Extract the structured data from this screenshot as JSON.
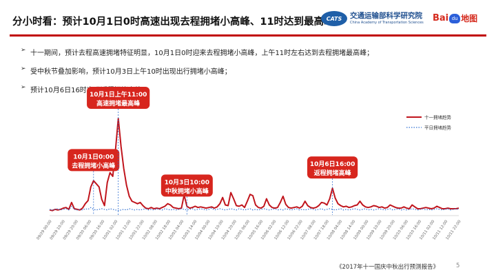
{
  "header": {
    "title": "分小时看：预计10月1日0时高速出现去程拥堵小高峰、11时达到最高峰",
    "org_badge": "CATS",
    "org_name_cn": "交通运输部科学研究院",
    "org_name_en": "China Academy of Transportation Sciences",
    "baidu_bai": "Bai",
    "baidu_du": "du",
    "baidu_map": "地图"
  },
  "bullets": [
    "十一期间，预计去程高速拥堵特征明显，10月1日0时迎来去程拥堵小高峰，上午11时左右达到去程拥堵最高峰；",
    "受中秋节叠加影响，预计10月3日上午10时出现出行拥堵小高峰；",
    "预计10月6日16时出现返程拥堵高峰。"
  ],
  "colors": {
    "accent_red": "#c00000",
    "callout_red": "#d7261e",
    "series_red": "#c0141c",
    "series_blue": "#2f6fd1"
  },
  "icons": {
    "bullet": "arrowhead-icon"
  },
  "chart_data": {
    "type": "line",
    "legend_position": "top-right",
    "grid": false,
    "series": [
      {
        "name": "十一拥堵趋势",
        "style": "solid",
        "color": "#c0141c",
        "values": [
          0.8,
          0.7,
          0.9,
          0.8,
          0.9,
          1.1,
          1.2,
          0.9,
          2.0,
          1.0,
          0.9,
          0.8,
          1.1,
          1.8,
          2.3,
          4.5,
          5.5,
          5.0,
          4.5,
          2.5,
          1.5,
          5.2,
          6.8,
          6.2,
          10.5,
          15.5,
          11.0,
          7.5,
          4.8,
          3.0,
          2.2,
          2.0,
          1.8,
          2.0,
          1.5,
          1.1,
          1.0,
          1.2,
          1.0,
          1.1,
          1.0,
          1.2,
          1.4,
          1.8,
          1.6,
          1.2,
          1.1,
          1.0,
          1.1,
          3.2,
          1.4,
          1.1,
          1.2,
          1.4,
          1.2,
          1.3,
          1.2,
          1.1,
          1.2,
          1.3,
          1.1,
          1.3,
          1.8,
          2.8,
          1.6,
          1.5,
          3.6,
          2.6,
          1.5,
          1.4,
          1.6,
          1.2,
          2.2,
          3.3,
          3.1,
          1.6,
          1.2,
          1.1,
          1.4,
          2.6,
          1.6,
          1.2,
          1.1,
          1.2,
          2.0,
          3.0,
          1.7,
          1.2,
          1.1,
          1.2,
          1.3,
          1.1,
          1.4,
          2.2,
          1.5,
          1.2,
          1.1,
          1.2,
          1.5,
          2.0,
          1.9,
          1.6,
          2.6,
          4.3,
          2.7,
          1.8,
          1.5,
          1.3,
          1.4,
          1.2,
          1.3,
          1.5,
          1.6,
          2.2,
          1.6,
          1.3,
          1.2,
          1.3,
          1.5,
          1.4,
          1.2,
          1.3,
          1.1,
          1.2,
          1.6,
          1.4,
          1.2,
          1.1,
          1.1,
          1.3,
          1.1,
          1.0,
          1.6,
          1.3,
          1.0,
          1.0,
          1.1,
          1.2,
          1.1,
          1.0,
          1.1,
          1.4,
          1.2,
          1.0,
          1.0,
          1.1,
          1.0,
          1.0,
          1.0,
          1.1
        ]
      },
      {
        "name": "平日拥堵趋势",
        "style": "dotted",
        "color": "#2f6fd1",
        "values": [
          0.9,
          0.8,
          0.9,
          1.0,
          0.8,
          0.9,
          1.0,
          0.8,
          1.4,
          0.9,
          0.8,
          0.9,
          0.8,
          1.0,
          0.9,
          1.2,
          0.9,
          0.8,
          0.9,
          1.0,
          0.9,
          0.8,
          1.0,
          0.9,
          0.8,
          0.7,
          0.8,
          0.9,
          0.8,
          1.0,
          0.9,
          0.8,
          0.9,
          0.8,
          0.9,
          1.0,
          0.8,
          0.9,
          0.8,
          1.0,
          0.9,
          0.8,
          1.0,
          0.9,
          0.8,
          0.9,
          0.8,
          0.9,
          1.0,
          0.9,
          0.8,
          0.9,
          1.0,
          0.8,
          0.9,
          1.0,
          0.9,
          0.8,
          0.9,
          1.1,
          0.8,
          0.9,
          1.0,
          0.9,
          0.8,
          0.9,
          1.0,
          0.9,
          0.8,
          1.0,
          0.9,
          0.8,
          0.9,
          1.0,
          0.8,
          0.9,
          0.8,
          0.9,
          1.0,
          0.9,
          0.8,
          0.9,
          1.0,
          0.8,
          0.9,
          0.8,
          1.0,
          0.9,
          0.8,
          0.9,
          1.0,
          0.8,
          0.9,
          0.8,
          0.9,
          1.0,
          0.9,
          0.8,
          0.9,
          1.0,
          0.8,
          0.9,
          1.0,
          0.9,
          0.8,
          0.9,
          1.0,
          0.8,
          0.9,
          0.8,
          0.9,
          1.0,
          0.9,
          0.8,
          0.9,
          1.0,
          0.8,
          0.9,
          0.8,
          0.9,
          1.0,
          0.9,
          0.8,
          0.9,
          1.0,
          0.8,
          0.9,
          1.0,
          0.8,
          0.9,
          0.8,
          0.9,
          1.0,
          0.9,
          0.8,
          0.9,
          1.0,
          0.8,
          0.9,
          0.8,
          0.9,
          1.0,
          0.9,
          0.8,
          0.9,
          1.0,
          0.8,
          0.9,
          1.0,
          0.9
        ]
      }
    ],
    "x_labels": [
      "09/29 00:00",
      "09/29 10:00",
      "09/29 20:00",
      "09/30 06:00",
      "09/30 16:00",
      "10/01 02:00",
      "10/01 12:00",
      "10/01 22:00",
      "10/02 08:00",
      "10/02 18:00",
      "10/03 04:00",
      "10/03 14:00",
      "10/04 00:00",
      "10/04 10:00",
      "10/04 20:00",
      "10/05 06:00",
      "10/05 16:00",
      "10/06 02:00",
      "10/06 12:00",
      "10/06 22:00",
      "10/07 08:00",
      "10/07 18:00",
      "10/08 04:00",
      "10/08 14:00",
      "10/09 00:00",
      "10/09 10:00",
      "10/09 20:00",
      "10/10 06:00",
      "10/10 16:00",
      "10/11 02:00",
      "10/11 12:00",
      "10/11 22:00"
    ],
    "callouts": [
      {
        "lines": [
          "10月1日0:00",
          "去程拥堵小高峰"
        ],
        "index": 16
      },
      {
        "lines": [
          "10月1日上午11:00",
          "高速拥堵最高峰"
        ],
        "index": 25
      },
      {
        "lines": [
          "10月3日10:00",
          "中秋拥堵小高峰"
        ],
        "index": 50
      },
      {
        "lines": [
          "10月6日16:00",
          "返程拥堵高峰"
        ],
        "index": 103
      }
    ]
  },
  "footer": {
    "source": "《2017年十一国庆中秋出行预测报告》",
    "page": "5"
  }
}
